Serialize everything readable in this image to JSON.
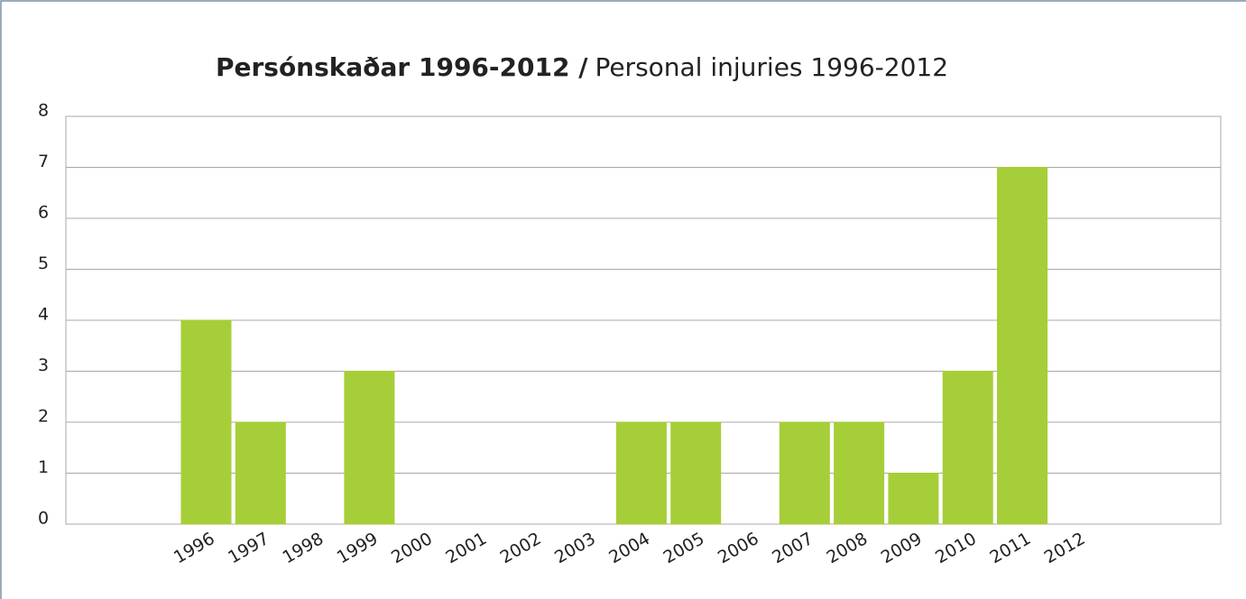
{
  "chart_data": {
    "type": "bar",
    "title": [
      "Persónskaðar 1996-2012 /",
      "Personal injuries 1996-2012"
    ],
    "categories": [
      "1996",
      "1997",
      "1998",
      "1999",
      "2000",
      "2001",
      "2002",
      "2003",
      "2004",
      "2005",
      "2006",
      "2007",
      "2008",
      "2009",
      "2010",
      "2011",
      "2012"
    ],
    "values": [
      4,
      2,
      0,
      3,
      0,
      0,
      0,
      0,
      2,
      2,
      0,
      2,
      2,
      1,
      3,
      7,
      0
    ],
    "color": "#a6ce39",
    "ylim": [
      0,
      8
    ],
    "yticks": [
      0,
      1,
      2,
      3,
      4,
      5,
      6,
      7,
      8
    ],
    "grid": true
  }
}
